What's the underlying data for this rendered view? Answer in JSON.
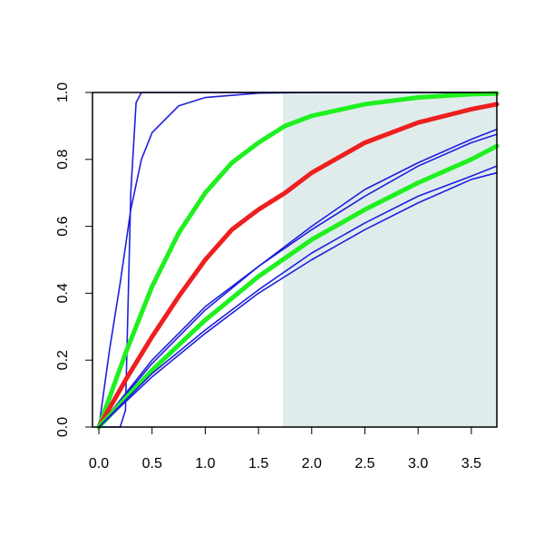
{
  "chart_data": {
    "type": "line",
    "title": "",
    "xlabel": "",
    "ylabel": "",
    "xlim": [
      -0.06,
      3.74
    ],
    "ylim": [
      0,
      1
    ],
    "x_ticks": [
      0.0,
      0.5,
      1.0,
      1.5,
      2.0,
      2.5,
      3.0,
      3.5
    ],
    "x_tick_labels": [
      "0.0",
      "0.5",
      "1.0",
      "1.5",
      "2.0",
      "2.5",
      "3.0",
      "3.5"
    ],
    "y_ticks": [
      0.0,
      0.2,
      0.4,
      0.6,
      0.8,
      1.0
    ],
    "y_tick_labels": [
      "0.0",
      "0.2",
      "0.4",
      "0.6",
      "0.8",
      "1.0"
    ],
    "grid": false,
    "legend": "none",
    "shaded_region": {
      "x_from": 1.73,
      "x_to": 3.74,
      "color": "#e0ecec"
    },
    "colors": {
      "blue": "#1f1fdd",
      "green": "#1ff01f",
      "red": "#ee1f1f"
    },
    "series": [
      {
        "color": "blue",
        "width": "thin",
        "x": [
          0,
          0.2,
          0.25,
          0.3,
          0.35,
          0.4,
          0.5,
          1.0,
          3.74
        ],
        "y": [
          0,
          0.0,
          0.05,
          0.7,
          0.97,
          1.0,
          1.0,
          1.0,
          1.0
        ]
      },
      {
        "color": "blue",
        "width": "thin",
        "x": [
          0,
          0.1,
          0.2,
          0.3,
          0.4,
          0.5,
          0.75,
          1.0,
          1.5,
          2.0,
          3.74
        ],
        "y": [
          0,
          0.23,
          0.43,
          0.65,
          0.8,
          0.88,
          0.96,
          0.985,
          0.998,
          1.0,
          1.0
        ]
      },
      {
        "color": "green",
        "width": "thick",
        "x": [
          0,
          0.25,
          0.5,
          0.75,
          1.0,
          1.25,
          1.5,
          1.75,
          2.0,
          2.5,
          3.0,
          3.5,
          3.74
        ],
        "y": [
          0,
          0.22,
          0.42,
          0.58,
          0.7,
          0.79,
          0.85,
          0.9,
          0.93,
          0.965,
          0.985,
          0.995,
          0.997
        ]
      },
      {
        "color": "red",
        "width": "thick",
        "x": [
          0,
          0.25,
          0.5,
          0.75,
          1.0,
          1.25,
          1.5,
          1.75,
          2.0,
          2.5,
          3.0,
          3.5,
          3.74
        ],
        "y": [
          0,
          0.14,
          0.27,
          0.39,
          0.5,
          0.59,
          0.65,
          0.7,
          0.76,
          0.85,
          0.91,
          0.95,
          0.965
        ]
      },
      {
        "color": "blue",
        "width": "thin",
        "x": [
          0,
          0.5,
          1.0,
          1.5,
          2.0,
          2.5,
          3.0,
          3.5,
          3.74
        ],
        "y": [
          0,
          0.2,
          0.36,
          0.48,
          0.6,
          0.71,
          0.79,
          0.86,
          0.89
        ]
      },
      {
        "color": "blue",
        "width": "thin",
        "x": [
          0,
          0.5,
          1.0,
          1.5,
          2.0,
          2.5,
          3.0,
          3.5,
          3.74
        ],
        "y": [
          0,
          0.19,
          0.35,
          0.48,
          0.59,
          0.69,
          0.78,
          0.85,
          0.875
        ]
      },
      {
        "color": "green",
        "width": "thick",
        "x": [
          0,
          0.5,
          1.0,
          1.5,
          2.0,
          2.5,
          3.0,
          3.5,
          3.74
        ],
        "y": [
          0,
          0.17,
          0.32,
          0.45,
          0.56,
          0.65,
          0.73,
          0.8,
          0.84
        ]
      },
      {
        "color": "blue",
        "width": "thin",
        "x": [
          0,
          0.5,
          1.0,
          1.5,
          2.0,
          2.5,
          3.0,
          3.5,
          3.74
        ],
        "y": [
          0,
          0.16,
          0.29,
          0.41,
          0.52,
          0.61,
          0.69,
          0.75,
          0.78
        ]
      },
      {
        "color": "blue",
        "width": "thin",
        "x": [
          0,
          0.5,
          1.0,
          1.5,
          2.0,
          2.5,
          3.0,
          3.5,
          3.74
        ],
        "y": [
          0,
          0.15,
          0.28,
          0.4,
          0.5,
          0.59,
          0.67,
          0.74,
          0.76
        ]
      }
    ]
  }
}
